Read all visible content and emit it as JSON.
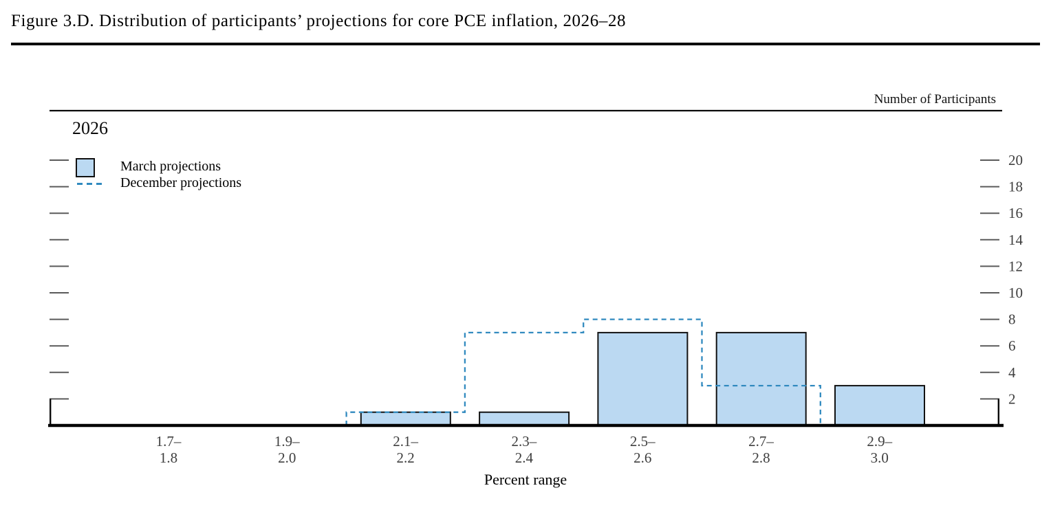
{
  "figure": {
    "title": "Figure 3.D. Distribution of participants’ projections for core PCE inflation, 2026–28"
  },
  "colors": {
    "bar_fill": "#BBD9F2",
    "bar_border": "#111111",
    "december_line": "#318ABF",
    "axis": "#0a0a0a",
    "tick": "#5a5a5a",
    "tick_label": "#3e3e3e"
  },
  "chart_data": {
    "type": "bar",
    "panel": "2026",
    "title": "Figure 3.D. Distribution of participants’ projections for core PCE inflation, 2026–28",
    "categories": [
      "1.7–1.8",
      "1.9–2.0",
      "2.1–2.2",
      "2.3–2.4",
      "2.5–2.6",
      "2.7–2.8",
      "2.9–3.0"
    ],
    "series": [
      {
        "name": "March projections",
        "type": "bar",
        "values": [
          0,
          0,
          1,
          1,
          7,
          7,
          3
        ]
      },
      {
        "name": "December projections",
        "type": "dashed-step",
        "values": [
          0,
          0,
          1,
          7,
          8,
          3,
          0
        ]
      }
    ],
    "xlabel": "Percent range",
    "ylabel": "Number of Participants",
    "yticks": [
      2,
      4,
      6,
      8,
      10,
      12,
      14,
      16,
      18,
      20
    ],
    "ylim": [
      0,
      23.5
    ],
    "grid": false,
    "legend_position": "top-left"
  }
}
